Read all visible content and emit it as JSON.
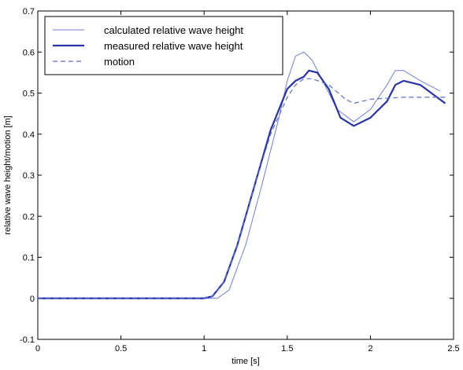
{
  "chart_data": {
    "type": "line",
    "xlabel": "time [s]",
    "ylabel": "relative wave height/motion [m]",
    "xlim": [
      0,
      2.5
    ],
    "ylim": [
      -0.1,
      0.7
    ],
    "xticks": [
      0,
      0.5,
      1,
      1.5,
      2,
      2.5
    ],
    "yticks": [
      -0.1,
      0,
      0.1,
      0.2,
      0.3,
      0.4,
      0.5,
      0.6,
      0.7
    ],
    "xtick_labels": [
      "0",
      "0.5",
      "1",
      "1.5",
      "2",
      "2.5"
    ],
    "ytick_labels": [
      "-0.1",
      "0",
      "0.1",
      "0.2",
      "0.3",
      "0.4",
      "0.5",
      "0.6",
      "0.7"
    ],
    "grid": false,
    "legend_position": "top-left",
    "series": [
      {
        "name": "calculated relative wave height",
        "color": "#6f7fd6",
        "style": "thin",
        "points": [
          [
            0,
            0
          ],
          [
            0.5,
            0
          ],
          [
            1.0,
            0
          ],
          [
            1.08,
            0
          ],
          [
            1.15,
            0.02
          ],
          [
            1.25,
            0.13
          ],
          [
            1.35,
            0.28
          ],
          [
            1.45,
            0.44
          ],
          [
            1.5,
            0.53
          ],
          [
            1.55,
            0.59
          ],
          [
            1.6,
            0.6
          ],
          [
            1.65,
            0.58
          ],
          [
            1.7,
            0.54
          ],
          [
            1.8,
            0.46
          ],
          [
            1.9,
            0.43
          ],
          [
            2.0,
            0.46
          ],
          [
            2.1,
            0.52
          ],
          [
            2.15,
            0.555
          ],
          [
            2.2,
            0.555
          ],
          [
            2.3,
            0.53
          ],
          [
            2.42,
            0.505
          ]
        ]
      },
      {
        "name": "measured relative wave height",
        "color": "#2733a8",
        "style": "thick",
        "points": [
          [
            0,
            0
          ],
          [
            0.5,
            0
          ],
          [
            1.0,
            0
          ],
          [
            1.05,
            0.005
          ],
          [
            1.12,
            0.04
          ],
          [
            1.2,
            0.13
          ],
          [
            1.3,
            0.27
          ],
          [
            1.4,
            0.41
          ],
          [
            1.5,
            0.51
          ],
          [
            1.55,
            0.53
          ],
          [
            1.6,
            0.54
          ],
          [
            1.63,
            0.555
          ],
          [
            1.68,
            0.55
          ],
          [
            1.75,
            0.51
          ],
          [
            1.82,
            0.44
          ],
          [
            1.9,
            0.42
          ],
          [
            2.0,
            0.44
          ],
          [
            2.1,
            0.48
          ],
          [
            2.15,
            0.52
          ],
          [
            2.2,
            0.53
          ],
          [
            2.3,
            0.52
          ],
          [
            2.4,
            0.49
          ],
          [
            2.45,
            0.475
          ]
        ]
      },
      {
        "name": "motion",
        "color": "#5b6fd0",
        "style": "dashed",
        "points": [
          [
            0,
            0
          ],
          [
            0.5,
            0
          ],
          [
            1.0,
            0
          ],
          [
            1.05,
            0.005
          ],
          [
            1.12,
            0.04
          ],
          [
            1.2,
            0.13
          ],
          [
            1.3,
            0.27
          ],
          [
            1.4,
            0.4
          ],
          [
            1.5,
            0.49
          ],
          [
            1.55,
            0.52
          ],
          [
            1.6,
            0.535
          ],
          [
            1.65,
            0.535
          ],
          [
            1.75,
            0.52
          ],
          [
            1.85,
            0.485
          ],
          [
            1.9,
            0.475
          ],
          [
            2.0,
            0.485
          ],
          [
            2.2,
            0.49
          ],
          [
            2.45,
            0.49
          ]
        ]
      }
    ]
  }
}
